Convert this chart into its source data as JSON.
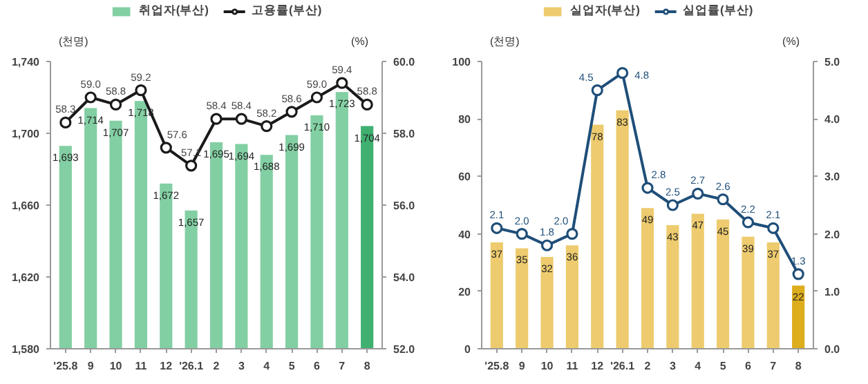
{
  "chart_data": [
    {
      "type": "bar",
      "categories": [
        "'25.8",
        "9",
        "10",
        "11",
        "12",
        "'26.1",
        "2",
        "3",
        "4",
        "5",
        "6",
        "7",
        "8"
      ],
      "ylabel": "(천명)",
      "y2label": "(%)",
      "ylim": [
        1580,
        1740
      ],
      "yticks": [
        {
          "value": 1580,
          "label": "1,580"
        },
        {
          "value": 1620,
          "label": "1,620"
        },
        {
          "value": 1660,
          "label": "1,660"
        },
        {
          "value": 1700,
          "label": "1,700"
        },
        {
          "value": 1740,
          "label": "1,740"
        }
      ],
      "y2lim": [
        52,
        60
      ],
      "y2ticks": [
        {
          "value": 52,
          "label": "52.0"
        },
        {
          "value": 54,
          "label": "54.0"
        },
        {
          "value": 56,
          "label": "56.0"
        },
        {
          "value": 58,
          "label": "58.0"
        },
        {
          "value": 60,
          "label": "60.0"
        }
      ],
      "legend": "top",
      "grid": false,
      "series": [
        {
          "name": "취업자(부산)",
          "colors": [
            "#82cfa3",
            "#82cfa3",
            "#82cfa3",
            "#82cfa3",
            "#82cfa3",
            "#82cfa3",
            "#82cfa3",
            "#82cfa3",
            "#82cfa3",
            "#82cfa3",
            "#82cfa3",
            "#82cfa3",
            "#3fb070"
          ],
          "values": [
            1693,
            1714,
            1707,
            1718,
            1672,
            1657,
            1695,
            1694,
            1688,
            1699,
            1710,
            1723,
            1704
          ],
          "value_labels": [
            "1,693",
            "1,714",
            "1,707",
            "1,718",
            "1,672",
            "1,657",
            "1,695",
            "1,694",
            "1,688",
            "1,699",
            "1,710",
            "1,723",
            "1,704"
          ]
        },
        {
          "name": "고용률(부산)",
          "type": "line",
          "axis": "y2",
          "color": "#1a1a1a",
          "marker": "circle",
          "values": [
            58.3,
            59.0,
            58.8,
            59.2,
            57.6,
            57.1,
            58.4,
            58.4,
            58.2,
            58.6,
            59.0,
            59.4,
            58.8
          ],
          "value_labels": [
            "58.3",
            "59.0",
            "58.8",
            "59.2",
            "57.6",
            "57.1",
            "58.4",
            "58.4",
            "58.2",
            "58.6",
            "59.0",
            "59.4",
            "58.8"
          ]
        }
      ]
    },
    {
      "type": "bar",
      "categories": [
        "'25.8",
        "9",
        "10",
        "11",
        "12",
        "'26.1",
        "2",
        "3",
        "4",
        "5",
        "6",
        "7",
        "8"
      ],
      "ylabel": "(천명)",
      "y2label": "(%)",
      "ylim": [
        0,
        100
      ],
      "yticks": [
        0,
        20,
        40,
        60,
        80,
        100
      ],
      "y2lim": [
        0,
        5
      ],
      "y2ticks": [
        {
          "value": 0,
          "label": "0.0"
        },
        {
          "value": 1,
          "label": "1.0"
        },
        {
          "value": 2,
          "label": "2.0"
        },
        {
          "value": 3,
          "label": "3.0"
        },
        {
          "value": 4,
          "label": "4.0"
        },
        {
          "value": 5,
          "label": "5.0"
        }
      ],
      "legend": "top",
      "grid": false,
      "series": [
        {
          "name": "실업자(부산)",
          "colors": [
            "#edcb6e",
            "#edcb6e",
            "#edcb6e",
            "#edcb6e",
            "#edcb6e",
            "#edcb6e",
            "#edcb6e",
            "#edcb6e",
            "#edcb6e",
            "#edcb6e",
            "#edcb6e",
            "#edcb6e",
            "#ddad1c"
          ],
          "values": [
            37,
            35,
            32,
            36,
            78,
            83,
            49,
            43,
            47,
            45,
            39,
            37,
            22
          ],
          "value_labels": [
            "37",
            "35",
            "32",
            "36",
            "78",
            "83",
            "49",
            "43",
            "47",
            "45",
            "39",
            "37",
            "22"
          ]
        },
        {
          "name": "실업률(부산)",
          "type": "line",
          "axis": "y2",
          "color": "#1f4e79",
          "marker": "circle",
          "values": [
            2.1,
            2.0,
            1.8,
            2.0,
            4.5,
            4.8,
            2.8,
            2.5,
            2.7,
            2.6,
            2.2,
            2.1,
            1.3
          ],
          "value_labels": [
            "2.1",
            "2.0",
            "1.8",
            "2.0",
            "4.5",
            "4.8",
            "2.8",
            "2.5",
            "2.7",
            "2.6",
            "2.2",
            "2.1",
            "1.3"
          ]
        }
      ]
    }
  ]
}
